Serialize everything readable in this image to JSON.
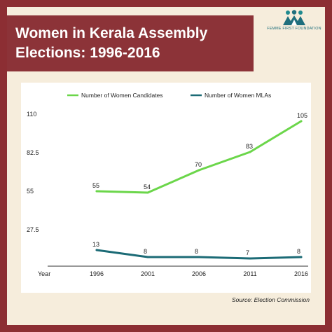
{
  "header": {
    "title_line1": "Women in Kerala Assembly",
    "title_line2": "Elections: 1996-2016",
    "logo_text": "FEMME FIRST FOUNDATION"
  },
  "footer": {
    "source": "Source: Election Commission"
  },
  "colors": {
    "frame": "#8c2e33",
    "candidates": "#6bd64a",
    "mlas": "#1c6b76",
    "background": "#f6eddc"
  },
  "chart_data": {
    "type": "line",
    "x_axis_label": "Year",
    "categories": [
      "1996",
      "2001",
      "2006",
      "2011",
      "2016"
    ],
    "y_ticks": [
      "110",
      "82.5",
      "55",
      "27.5"
    ],
    "ylim": [
      0,
      110
    ],
    "grid": false,
    "legend_position": "top",
    "series": [
      {
        "name": "Number of Women Candidates",
        "color": "#6bd64a",
        "values": [
          55,
          54,
          70,
          83,
          105
        ]
      },
      {
        "name": "Number of Women MLAs",
        "color": "#1c6b76",
        "values": [
          13,
          8,
          8,
          7,
          8
        ]
      }
    ]
  }
}
